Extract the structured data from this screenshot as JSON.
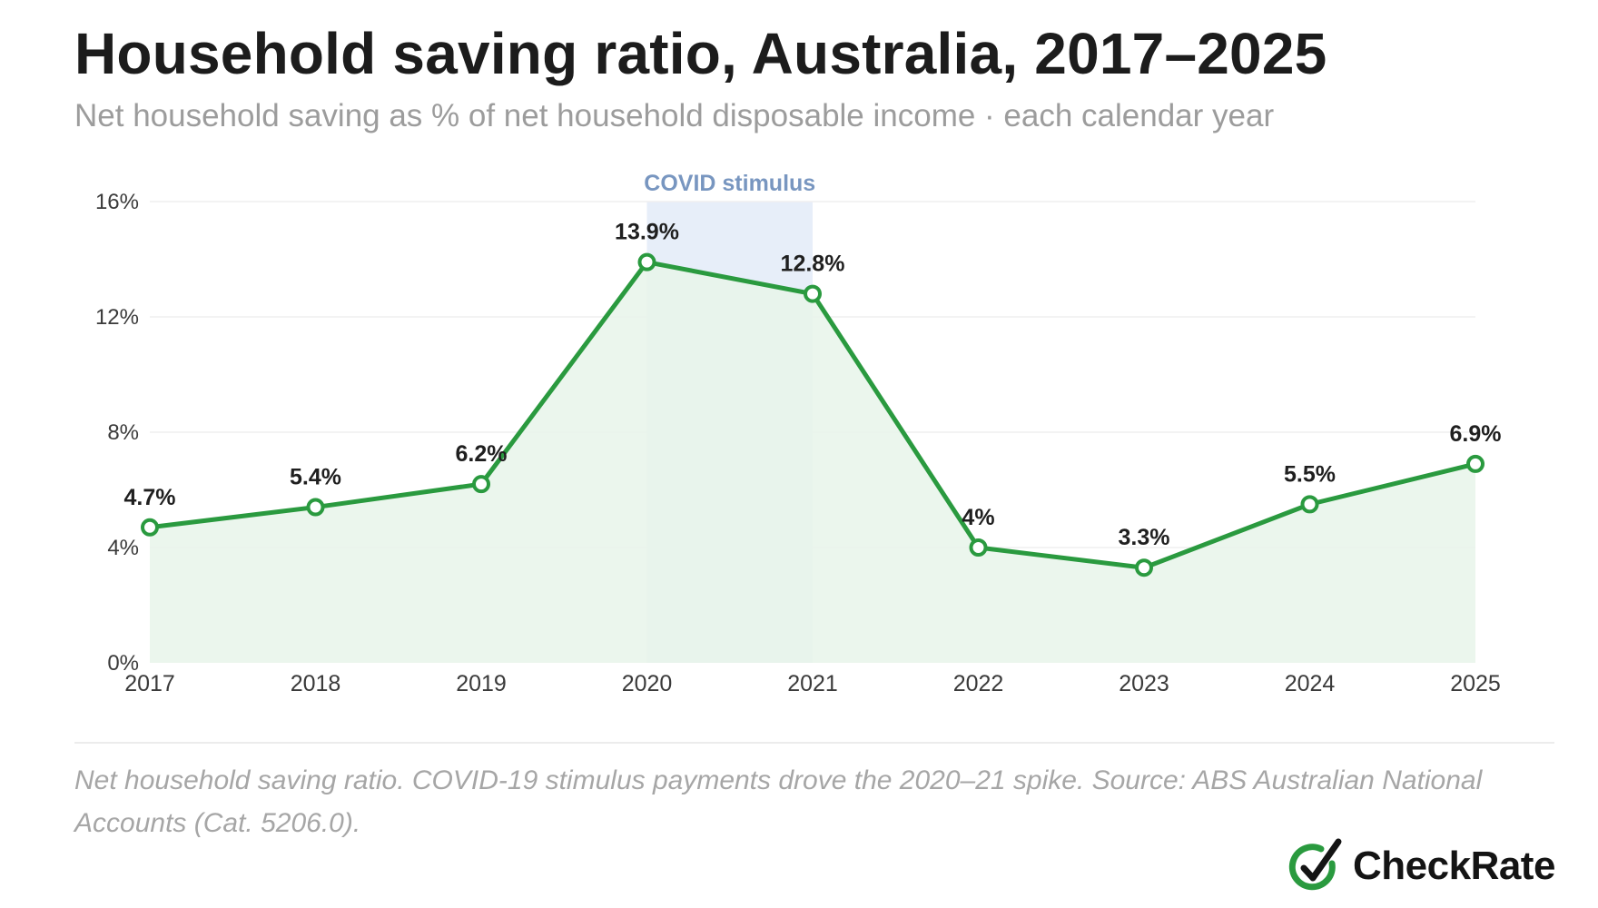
{
  "header": {
    "title": "Household saving ratio, Australia, 2017–2025",
    "subtitle": "Net household saving as % of net household disposable income · each calendar year"
  },
  "chart_data": {
    "type": "area",
    "categories": [
      "2017",
      "2018",
      "2019",
      "2020",
      "2021",
      "2022",
      "2023",
      "2024",
      "2025"
    ],
    "values": [
      4.7,
      5.4,
      6.2,
      13.9,
      12.8,
      4.0,
      3.3,
      5.5,
      6.9
    ],
    "data_labels": [
      "4.7%",
      "5.4%",
      "6.2%",
      "13.9%",
      "12.8%",
      "4%",
      "3.3%",
      "5.5%",
      "6.9%"
    ],
    "y_ticks": [
      0,
      4,
      8,
      12,
      16
    ],
    "y_tick_labels": [
      "0%",
      "4%",
      "8%",
      "12%",
      "16%"
    ],
    "ylim": [
      0,
      16
    ],
    "grid": true,
    "legend": "none",
    "annotation": {
      "label": "COVID stimulus",
      "x_start": "2020",
      "x_end": "2021"
    },
    "colors": {
      "line": "#2a9a3f",
      "area_fill": "#e8f4ea",
      "band_fill": "#e7eef9",
      "band_label": "#7896c0",
      "grid": "#efefef",
      "axis_text": "#3a3a3a",
      "value_label": "#1f1f1f"
    }
  },
  "footer": {
    "note": "Net household saving ratio. COVID-19 stimulus payments drove the 2020–21 spike. Source: ABS Australian National Accounts (Cat. 5206.0).",
    "brand": "CheckRate",
    "brand_icon": "check-circle-icon",
    "brand_color": "#2a9a3f"
  }
}
